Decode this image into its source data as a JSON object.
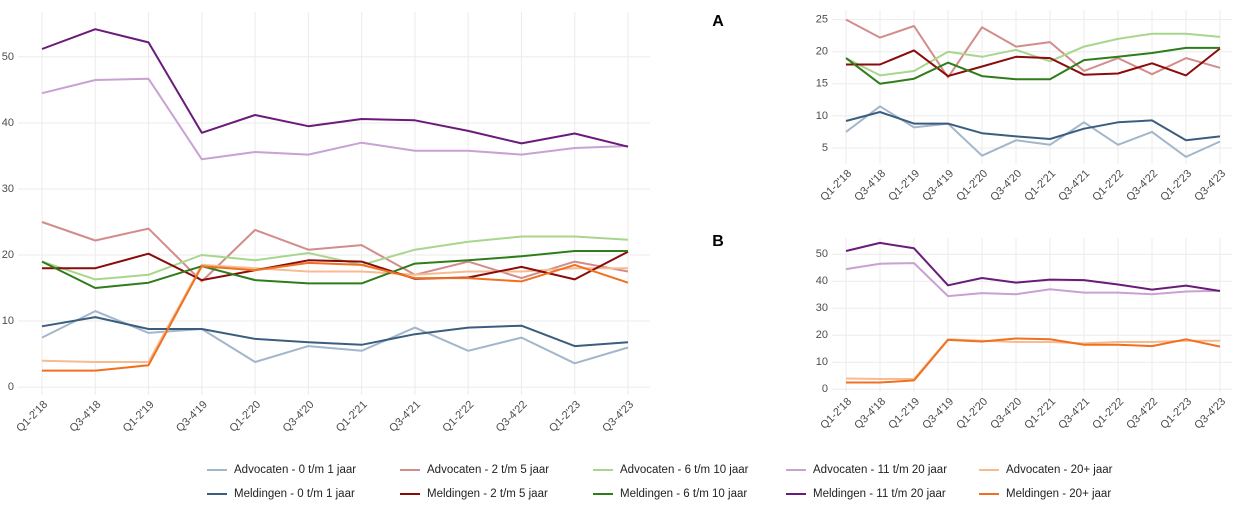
{
  "chart_data": [
    {
      "type": "line",
      "categories": [
        "Q1-2'18",
        "Q3-4'18",
        "Q1-2'19",
        "Q3-4'19",
        "Q1-2'20",
        "Q3-4'20",
        "Q1-2'21",
        "Q3-4'21",
        "Q1-2'22",
        "Q3-4'22",
        "Q1-2'23",
        "Q3-4'23"
      ],
      "ylim": [
        -1.2,
        56.8
      ],
      "yticks": [
        0,
        10,
        20,
        30,
        40,
        50
      ],
      "grid": true,
      "series": [
        {
          "name": "Advocaten - 0 t/m 1 jaar",
          "color": "#a3b6cb",
          "values": [
            7.5,
            11.5,
            8.2,
            8.8,
            3.8,
            6.2,
            5.5,
            9.0,
            5.5,
            7.5,
            3.6,
            6.0
          ]
        },
        {
          "name": "Advocaten - 2 t/m 5 jaar",
          "color": "#d38c8c",
          "values": [
            25,
            22.2,
            24,
            16,
            23.8,
            20.8,
            21.5,
            17,
            19,
            16.5,
            19,
            17.5
          ]
        },
        {
          "name": "Advocaten - 6 t/m 10 jaar",
          "color": "#a8d68d",
          "values": [
            19,
            16.3,
            17,
            20,
            19.2,
            20.3,
            18.5,
            20.8,
            22,
            22.8,
            22.8,
            22.3
          ]
        },
        {
          "name": "Advocaten - 11 t/m 20 jaar",
          "color": "#c9a1d2",
          "values": [
            44.5,
            46.5,
            46.7,
            34.5,
            35.6,
            35.2,
            37,
            35.8,
            35.8,
            35.2,
            36.2,
            36.5
          ]
        },
        {
          "name": "Advocaten - 20+ jaar",
          "color": "#f6bb90",
          "values": [
            4.0,
            3.8,
            3.8,
            18.5,
            18,
            17.5,
            17.5,
            17,
            17.5,
            17.5,
            18,
            18
          ]
        },
        {
          "name": "Meldingen - 0 t/m 1 jaar",
          "color": "#3b5e7f",
          "values": [
            9.2,
            10.6,
            8.8,
            8.8,
            7.3,
            6.8,
            6.4,
            8.0,
            9.0,
            9.3,
            6.2,
            6.8
          ]
        },
        {
          "name": "Meldingen - 2 t/m 5 jaar",
          "color": "#8b0a0a",
          "values": [
            18,
            18,
            20.2,
            16.2,
            17.7,
            19.2,
            19.0,
            16.4,
            16.6,
            18.2,
            16.3,
            20.5
          ]
        },
        {
          "name": "Meldingen - 6 t/m 10 jaar",
          "color": "#2e7d1a",
          "values": [
            19,
            15,
            15.8,
            18.3,
            16.2,
            15.7,
            15.7,
            18.7,
            19.2,
            19.8,
            20.6,
            20.6
          ]
        },
        {
          "name": "Meldingen - 11 t/m 20 jaar",
          "color": "#6a1b7a",
          "values": [
            51.2,
            54.2,
            52.2,
            38.5,
            41.2,
            39.5,
            40.6,
            40.4,
            38.8,
            36.9,
            38.4,
            36.4
          ]
        },
        {
          "name": "Meldingen - 20+ jaar",
          "color": "#f07020",
          "values": [
            2.5,
            2.5,
            3.3,
            18.3,
            17.7,
            18.8,
            18.5,
            16.5,
            16.5,
            16.0,
            18.5,
            15.8
          ]
        }
      ]
    },
    {
      "type": "line",
      "title": "A",
      "categories": [
        "Q1-2'18",
        "Q3-4'18",
        "Q1-2'19",
        "Q3-4'19",
        "Q1-2'20",
        "Q3-4'20",
        "Q1-2'21",
        "Q3-4'21",
        "Q1-2'22",
        "Q3-4'22",
        "Q1-2'23",
        "Q3-4'23"
      ],
      "ylim": [
        2.5,
        26.5
      ],
      "yticks": [
        5,
        10,
        15,
        20,
        25
      ],
      "grid": true,
      "series": [
        {
          "color": "#a3b6cb",
          "values": [
            7.5,
            11.5,
            8.2,
            8.8,
            3.8,
            6.2,
            5.5,
            9.0,
            5.5,
            7.5,
            3.6,
            6.0
          ]
        },
        {
          "color": "#d38c8c",
          "values": [
            25,
            22.2,
            24,
            16,
            23.8,
            20.8,
            21.5,
            17,
            19,
            16.5,
            19,
            17.5
          ]
        },
        {
          "color": "#a8d68d",
          "values": [
            19,
            16.3,
            17,
            20,
            19.2,
            20.3,
            18.5,
            20.8,
            22,
            22.8,
            22.8,
            22.3
          ]
        },
        {
          "color": "#3b5e7f",
          "values": [
            9.2,
            10.6,
            8.8,
            8.8,
            7.3,
            6.8,
            6.4,
            8.0,
            9.0,
            9.3,
            6.2,
            6.8
          ]
        },
        {
          "color": "#8b0a0a",
          "values": [
            18,
            18,
            20.2,
            16.2,
            17.7,
            19.2,
            19.0,
            16.4,
            16.6,
            18.2,
            16.3,
            20.5
          ]
        },
        {
          "color": "#2e7d1a",
          "values": [
            19,
            15,
            15.8,
            18.3,
            16.2,
            15.7,
            15.7,
            18.7,
            19.2,
            19.8,
            20.6,
            20.6
          ]
        }
      ]
    },
    {
      "type": "line",
      "title": "B",
      "categories": [
        "Q1-2'18",
        "Q3-4'18",
        "Q1-2'19",
        "Q3-4'19",
        "Q1-2'20",
        "Q3-4'20",
        "Q1-2'21",
        "Q3-4'21",
        "Q1-2'22",
        "Q3-4'22",
        "Q1-2'23",
        "Q3-4'23"
      ],
      "ylim": [
        -1,
        56
      ],
      "yticks": [
        0,
        10,
        20,
        30,
        40,
        50
      ],
      "grid": true,
      "series": [
        {
          "color": "#c9a1d2",
          "values": [
            44.5,
            46.5,
            46.7,
            34.5,
            35.6,
            35.2,
            37,
            35.8,
            35.8,
            35.2,
            36.2,
            36.5
          ]
        },
        {
          "color": "#f6bb90",
          "values": [
            4.0,
            3.8,
            3.8,
            18.5,
            18,
            17.5,
            17.5,
            17,
            17.5,
            17.5,
            18,
            18
          ]
        },
        {
          "color": "#6a1b7a",
          "values": [
            51.2,
            54.2,
            52.2,
            38.5,
            41.2,
            39.5,
            40.6,
            40.4,
            38.8,
            36.9,
            38.4,
            36.4
          ]
        },
        {
          "color": "#f07020",
          "values": [
            2.5,
            2.5,
            3.3,
            18.3,
            17.7,
            18.8,
            18.5,
            16.5,
            16.5,
            16.0,
            18.5,
            15.8
          ]
        }
      ]
    }
  ]
}
